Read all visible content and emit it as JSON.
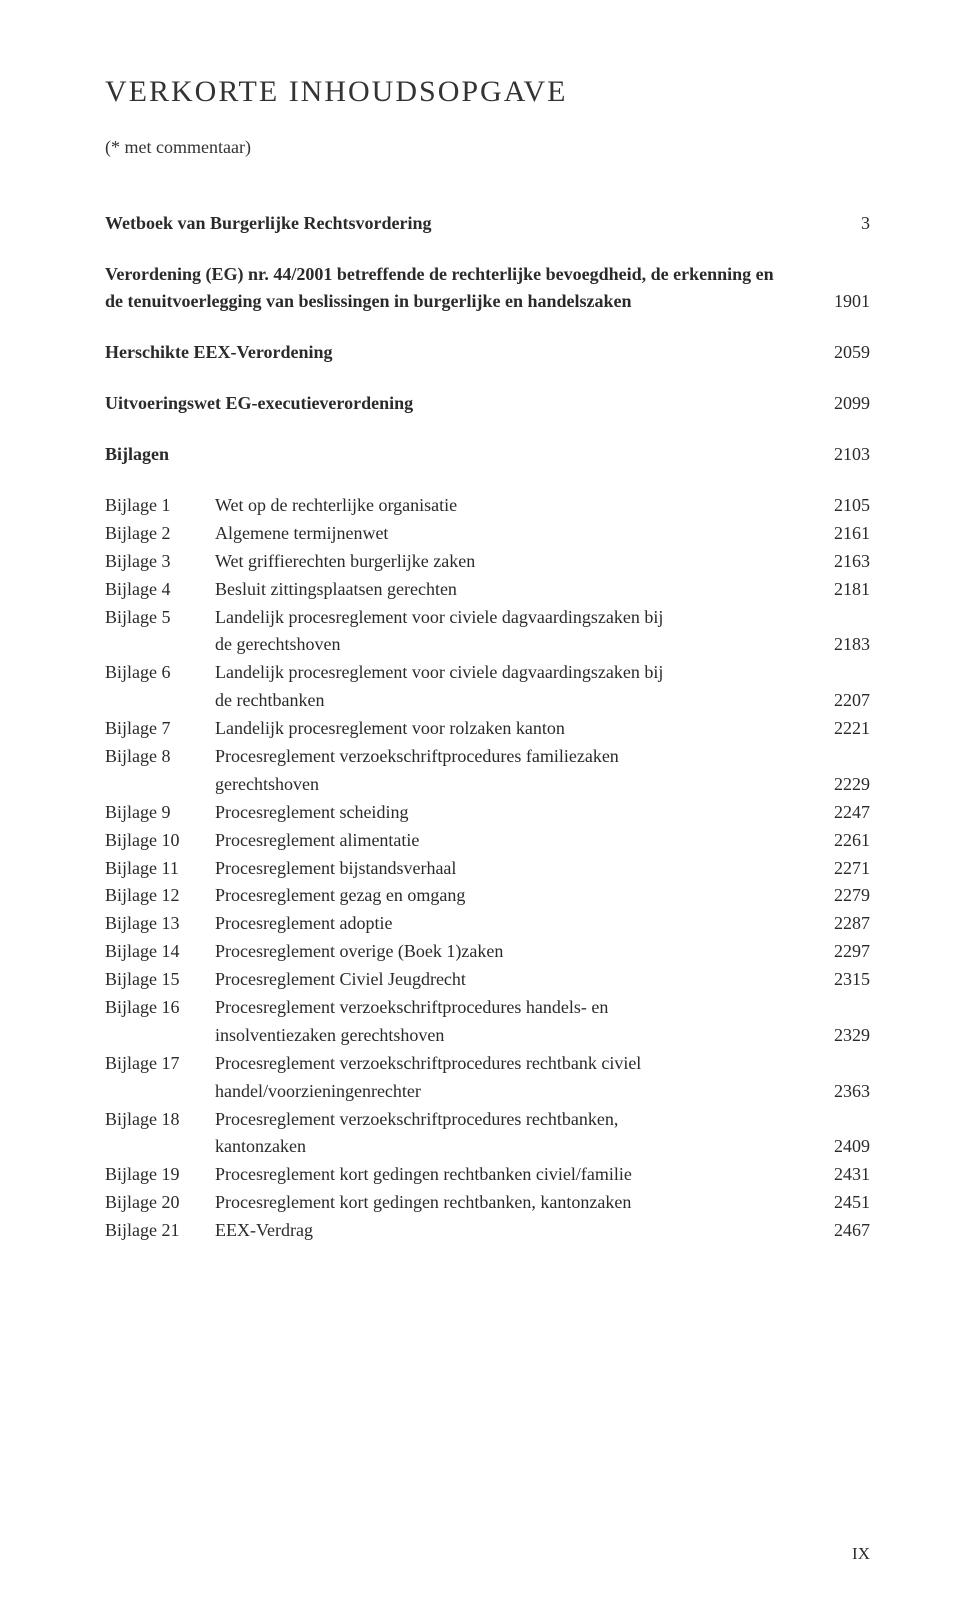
{
  "title": "VERKORTE INHOUDSOPGAVE",
  "subtitle": "(* met commentaar)",
  "mainEntries": [
    {
      "label": "Wetboek van Burgerlijke Rechtsvordering",
      "page": "3",
      "bold": true,
      "continuation": null
    },
    {
      "label": "Verordening (EG) nr. 44/2001 betreffende de rechterlijke bevoegdheid, de erkenning en de tenuitvoerlegging van beslissingen in burgerlijke en handelszaken",
      "page": "1901",
      "bold": true,
      "continuation": null
    },
    {
      "label": "Herschikte EEX-Verordening",
      "page": "2059",
      "bold": true,
      "continuation": null
    },
    {
      "label": "Uitvoeringswet EG-executieverordening",
      "page": "2099",
      "bold": true,
      "continuation": null
    },
    {
      "label": "Bijlagen",
      "page": "2103",
      "bold": true,
      "continuation": null
    }
  ],
  "bijlagen": [
    {
      "num": "Bijlage 1",
      "desc": "Wet op de rechterlijke organisatie",
      "page": "2105"
    },
    {
      "num": "Bijlage 2",
      "desc": "Algemene termijnenwet",
      "page": "2161"
    },
    {
      "num": "Bijlage 3",
      "desc": "Wet griffierechten burgerlijke zaken",
      "page": "2163"
    },
    {
      "num": "Bijlage 4",
      "desc": "Besluit zittingsplaatsen gerechten",
      "page": "2181"
    },
    {
      "num": "Bijlage 5",
      "desc": "Landelijk procesreglement voor civiele dagvaardingszaken bij",
      "page": ""
    },
    {
      "num": "",
      "desc": "de gerechtshoven",
      "page": "2183"
    },
    {
      "num": "Bijlage 6",
      "desc": "Landelijk procesreglement voor civiele dagvaardingszaken bij",
      "page": ""
    },
    {
      "num": "",
      "desc": "de rechtbanken",
      "page": "2207"
    },
    {
      "num": "Bijlage 7",
      "desc": "Landelijk procesreglement voor rolzaken kanton",
      "page": "2221"
    },
    {
      "num": "Bijlage 8",
      "desc": "Procesreglement verzoekschriftprocedures familiezaken",
      "page": ""
    },
    {
      "num": "",
      "desc": "gerechtshoven",
      "page": "2229"
    },
    {
      "num": "Bijlage 9",
      "desc": "Procesreglement scheiding",
      "page": "2247"
    },
    {
      "num": "Bijlage 10",
      "desc": "Procesreglement alimentatie",
      "page": "2261"
    },
    {
      "num": "Bijlage 11",
      "desc": "Procesreglement bijstandsverhaal",
      "page": "2271"
    },
    {
      "num": "Bijlage 12",
      "desc": "Procesreglement gezag en omgang",
      "page": "2279"
    },
    {
      "num": "Bijlage 13",
      "desc": "Procesreglement adoptie",
      "page": "2287"
    },
    {
      "num": "Bijlage 14",
      "desc": "Procesreglement overige (Boek 1)zaken",
      "page": "2297"
    },
    {
      "num": "Bijlage 15",
      "desc": "Procesreglement Civiel Jeugdrecht",
      "page": "2315"
    },
    {
      "num": "Bijlage 16",
      "desc": "Procesreglement verzoekschriftprocedures handels- en",
      "page": ""
    },
    {
      "num": "",
      "desc": "insolventiezaken gerechtshoven",
      "page": "2329"
    },
    {
      "num": "Bijlage 17",
      "desc": "Procesreglement verzoekschriftprocedures rechtbank civiel",
      "page": ""
    },
    {
      "num": "",
      "desc": "handel/voorzieningenrechter",
      "page": "2363"
    },
    {
      "num": "Bijlage 18",
      "desc": "Procesreglement verzoekschriftprocedures rechtbanken,",
      "page": ""
    },
    {
      "num": "",
      "desc": "kantonzaken",
      "page": "2409"
    },
    {
      "num": "Bijlage 19",
      "desc": "Procesreglement kort gedingen rechtbanken civiel/familie",
      "page": "2431"
    },
    {
      "num": "Bijlage 20",
      "desc": "Procesreglement kort gedingen rechtbanken, kantonzaken",
      "page": "2451"
    },
    {
      "num": "Bijlage 21",
      "desc": "EEX-Verdrag",
      "page": "2467"
    }
  ],
  "pageNumber": "IX"
}
